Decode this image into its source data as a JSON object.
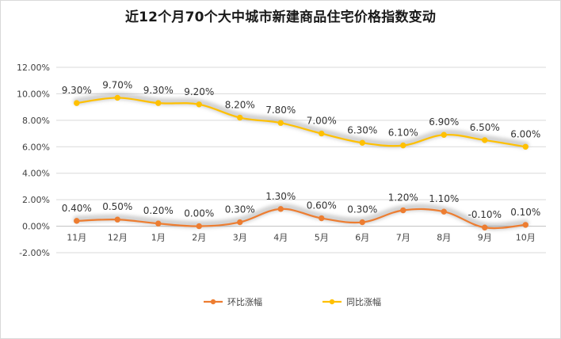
{
  "chart_data": {
    "type": "line",
    "title": "近12个月70个大中城市新建商品住宅价格指数变动",
    "categories": [
      "11月",
      "12月",
      "1月",
      "2月",
      "3月",
      "4月",
      "5月",
      "6月",
      "7月",
      "8月",
      "9月",
      "10月"
    ],
    "series": [
      {
        "name": "环比涨幅",
        "color": "#ed7d31",
        "values": [
          0.4,
          0.5,
          0.2,
          0.0,
          0.3,
          1.3,
          0.6,
          0.3,
          1.2,
          1.1,
          -0.1,
          0.1
        ],
        "labels": [
          "0.40%",
          "0.50%",
          "0.20%",
          "0.00%",
          "0.30%",
          "1.30%",
          "0.60%",
          "0.30%",
          "1.20%",
          "1.10%",
          "-0.10%",
          "0.10%"
        ]
      },
      {
        "name": "同比涨幅",
        "color": "#ffc000",
        "values": [
          9.3,
          9.7,
          9.3,
          9.2,
          8.2,
          7.8,
          7.0,
          6.3,
          6.1,
          6.9,
          6.5,
          6.0
        ],
        "labels": [
          "9.30%",
          "9.70%",
          "9.30%",
          "9.20%",
          "8.20%",
          "7.80%",
          "7.00%",
          "6.30%",
          "6.10%",
          "6.90%",
          "6.50%",
          "6.00%"
        ]
      }
    ],
    "ylim": [
      -2,
      12
    ],
    "yticks": [
      -2,
      0,
      2,
      4,
      6,
      8,
      10,
      12
    ],
    "ytick_labels": [
      "-2.00%",
      "0.00%",
      "2.00%",
      "4.00%",
      "6.00%",
      "8.00%",
      "10.00%",
      "12.00%"
    ],
    "grid": true,
    "smooth": true,
    "legend_position": "bottom",
    "gridline_color": "#d9d9d9",
    "axis_label_color": "#404040"
  }
}
